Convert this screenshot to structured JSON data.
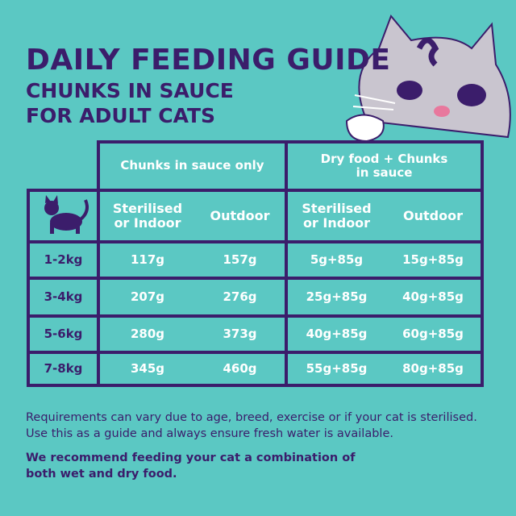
{
  "header": {
    "title": "DAILY FEEDING GUIDE",
    "subtitle_lines": [
      "CHUNKS IN SAUCE",
      "FOR ADULT CATS"
    ]
  },
  "table": {
    "groups": [
      "Chunks in sauce only",
      "Dry food + Chunks in sauce"
    ],
    "columns": [
      "Sterilised or Indoor",
      "Outdoor",
      "Sterilised or Indoor",
      "Outdoor"
    ],
    "rows": [
      [
        "1-2kg",
        "117g",
        "157g",
        "5g+85g",
        "15g+85g"
      ],
      [
        "3-4kg",
        "207g",
        "276g",
        "25g+85g",
        "40g+85g"
      ],
      [
        "5-6kg",
        "280g",
        "373g",
        "40g+85g",
        "60g+85g"
      ],
      [
        "7-8kg",
        "345g",
        "460g",
        "55g+85g",
        "80g+85g"
      ]
    ]
  },
  "notes": [
    "Requirements can vary due to age, breed, exercise or if your cat is sterilised. Use this as a guide and always ensure fresh water is available.",
    "We recommend feeding your cat a combination of both wet and dry food."
  ]
}
